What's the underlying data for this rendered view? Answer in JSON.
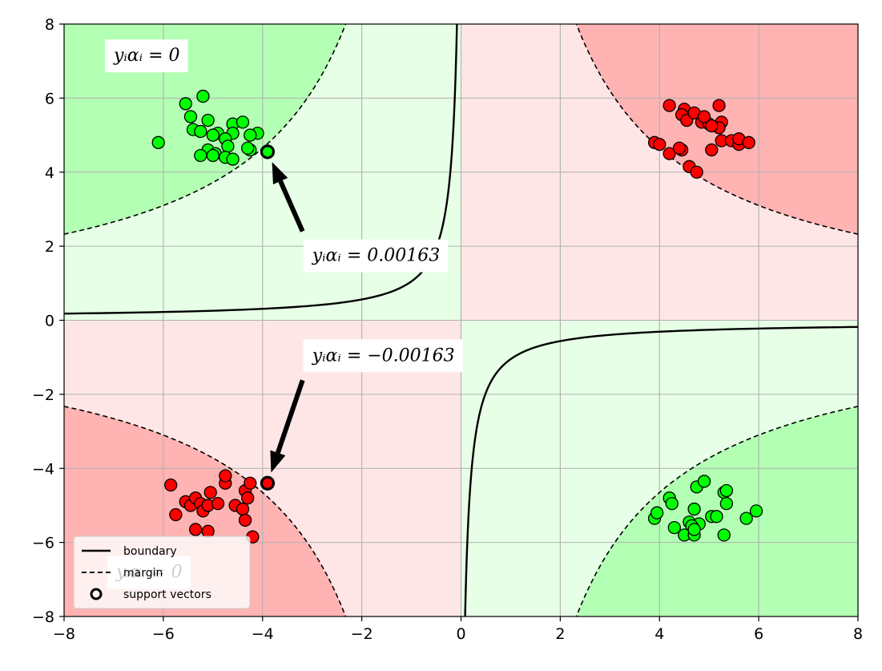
{
  "chart_data": {
    "type": "scatter",
    "title": "",
    "xlabel": "",
    "ylabel": "",
    "xlim": [
      -8,
      8
    ],
    "ylim": [
      -8,
      8
    ],
    "xticks": [
      -8,
      -6,
      -4,
      -2,
      0,
      2,
      4,
      6,
      8
    ],
    "yticks": [
      -8,
      -6,
      -4,
      -2,
      0,
      2,
      4,
      6,
      8
    ],
    "xtick_labels": [
      "−8",
      "−6",
      "−4",
      "−2",
      "0",
      "2",
      "4",
      "6",
      "8"
    ],
    "ytick_labels": [
      "−8",
      "−6",
      "−4",
      "−2",
      "0",
      "2",
      "4",
      "6",
      "8"
    ],
    "grid": true,
    "decision_function": "x*y/18.6",
    "region_colors": {
      "green_outer": "#b3ffb3",
      "green_inner": "#e6ffe6",
      "red_inner": "#ffe6e6",
      "red_outer": "#ffb3b3"
    },
    "series": [
      {
        "color": "#00ff00",
        "points": [
          [
            -6.1,
            4.8
          ],
          [
            -5.55,
            5.85
          ],
          [
            -5.2,
            6.05
          ],
          [
            -5.45,
            5.5
          ],
          [
            -5.1,
            5.4
          ],
          [
            -5.4,
            5.15
          ],
          [
            -5.25,
            5.1
          ],
          [
            -4.9,
            5.05
          ],
          [
            -4.6,
            5.3
          ],
          [
            -4.4,
            5.35
          ],
          [
            -4.1,
            5.05
          ],
          [
            -4.25,
            5.0
          ],
          [
            -4.6,
            5.05
          ],
          [
            -4.75,
            4.9
          ],
          [
            -5.0,
            5.0
          ],
          [
            -4.7,
            4.7
          ],
          [
            -5.1,
            4.6
          ],
          [
            -4.95,
            4.5
          ],
          [
            -4.75,
            4.4
          ],
          [
            -4.6,
            4.35
          ],
          [
            -5.0,
            4.45
          ],
          [
            -5.25,
            4.45
          ],
          [
            -4.25,
            4.6
          ],
          [
            -4.3,
            4.65
          ],
          [
            -3.9,
            4.55
          ],
          [
            3.9,
            -5.35
          ],
          [
            3.95,
            -5.2
          ],
          [
            4.2,
            -4.8
          ],
          [
            4.25,
            -4.95
          ],
          [
            4.3,
            -5.6
          ],
          [
            4.5,
            -5.8
          ],
          [
            4.6,
            -5.45
          ],
          [
            4.7,
            -5.1
          ],
          [
            4.75,
            -4.5
          ],
          [
            4.9,
            -4.35
          ],
          [
            5.05,
            -5.3
          ],
          [
            5.15,
            -5.3
          ],
          [
            5.3,
            -5.8
          ],
          [
            5.3,
            -4.65
          ],
          [
            5.35,
            -4.6
          ],
          [
            5.35,
            -4.95
          ],
          [
            5.75,
            -5.35
          ],
          [
            5.95,
            -5.15
          ],
          [
            4.7,
            -5.8
          ],
          [
            4.8,
            -5.5
          ],
          [
            4.65,
            -5.55
          ],
          [
            4.7,
            -5.65
          ],
          [
            -3.9,
            4.55
          ]
        ]
      },
      {
        "color": "#ff0000",
        "points": [
          [
            4.2,
            5.8
          ],
          [
            4.5,
            5.7
          ],
          [
            4.45,
            5.55
          ],
          [
            4.55,
            5.4
          ],
          [
            4.7,
            5.6
          ],
          [
            4.85,
            5.35
          ],
          [
            5.0,
            5.3
          ],
          [
            5.2,
            5.8
          ],
          [
            5.25,
            5.35
          ],
          [
            5.2,
            5.2
          ],
          [
            5.05,
            5.25
          ],
          [
            4.9,
            5.5
          ],
          [
            3.9,
            4.8
          ],
          [
            4.0,
            4.75
          ],
          [
            4.2,
            4.5
          ],
          [
            4.45,
            4.6
          ],
          [
            4.4,
            4.65
          ],
          [
            4.6,
            4.15
          ],
          [
            4.75,
            4.0
          ],
          [
            5.05,
            4.6
          ],
          [
            5.25,
            4.85
          ],
          [
            5.45,
            4.85
          ],
          [
            5.6,
            4.75
          ],
          [
            5.6,
            4.9
          ],
          [
            5.8,
            4.8
          ],
          [
            -5.85,
            -4.45
          ],
          [
            -5.75,
            -5.25
          ],
          [
            -5.55,
            -4.9
          ],
          [
            -5.45,
            -5.0
          ],
          [
            -5.35,
            -4.8
          ],
          [
            -5.25,
            -4.95
          ],
          [
            -5.2,
            -5.15
          ],
          [
            -5.05,
            -4.65
          ],
          [
            -5.1,
            -5.0
          ],
          [
            -4.9,
            -4.95
          ],
          [
            -4.75,
            -4.4
          ],
          [
            -4.75,
            -4.2
          ],
          [
            -4.55,
            -5.0
          ],
          [
            -4.35,
            -4.6
          ],
          [
            -4.25,
            -4.4
          ],
          [
            -4.3,
            -4.8
          ],
          [
            -4.4,
            -5.1
          ],
          [
            -4.35,
            -5.4
          ],
          [
            -4.2,
            -5.85
          ],
          [
            -5.1,
            -5.7
          ],
          [
            -5.35,
            -5.65
          ],
          [
            -3.9,
            -4.4
          ]
        ]
      }
    ],
    "support_vectors": [
      [
        -3.9,
        4.55
      ],
      [
        -3.9,
        -4.4
      ]
    ],
    "annotations": [
      {
        "text": "yᵢαᵢ = 0",
        "x": -7.0,
        "y": 7.0,
        "box": true
      },
      {
        "text": "yᵢαᵢ = 0.00163",
        "x": -3.0,
        "y": 1.6,
        "box": true,
        "arrow_to": [
          -3.9,
          4.55
        ]
      },
      {
        "text": "yᵢαᵢ = −0.00163",
        "x": -3.0,
        "y": -1.1,
        "box": true,
        "arrow_to": [
          -3.9,
          -4.4
        ]
      },
      {
        "text": "yᵢαᵢ = 0",
        "x": -6.95,
        "y": -6.95,
        "box": true
      }
    ],
    "legend": {
      "placement": "lower-left",
      "entries": [
        "boundary",
        "margin",
        "support vectors"
      ]
    }
  }
}
